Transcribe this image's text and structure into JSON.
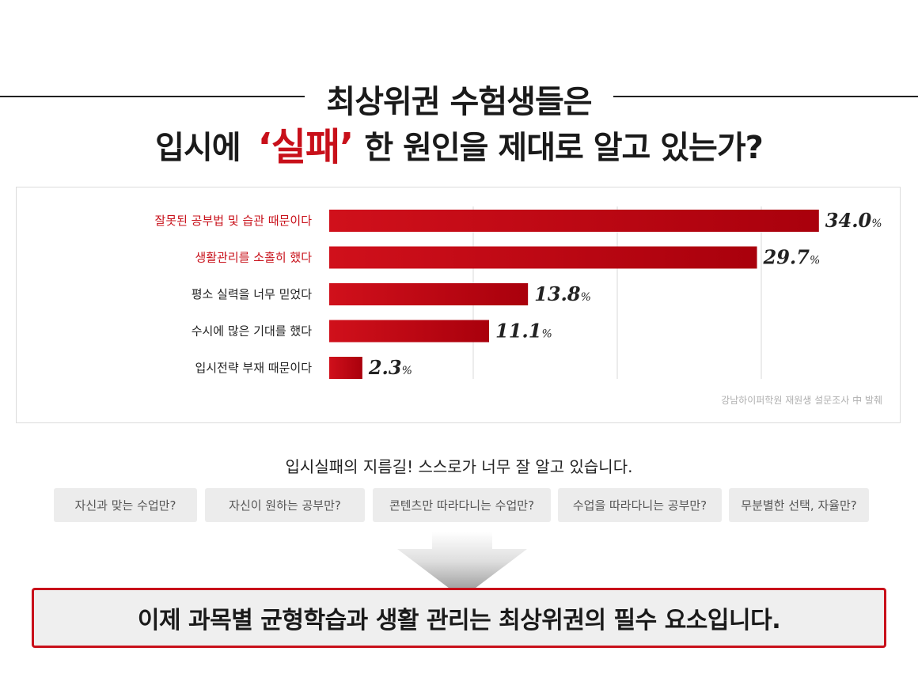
{
  "header": {
    "line1": "최상위권 수험생들은",
    "line2_before": "입시에",
    "line2_highlight": "‘실패’",
    "line2_after": "한 원인을 제대로 알고 있는가?"
  },
  "chart_data": {
    "type": "bar",
    "orientation": "horizontal",
    "categories": [
      "잘못된 공부법 및 습관 때문이다",
      "생활관리를 소홀히 했다",
      "평소 실력을 너무 믿었다",
      "수시에 많은 기대를 했다",
      "입시전략 부재 때문이다"
    ],
    "values": [
      34.0,
      29.7,
      13.8,
      11.1,
      2.3
    ],
    "value_labels": [
      "34.0",
      "29.7",
      "13.8",
      "11.1",
      "2.3"
    ],
    "unit": "%",
    "highlighted_categories": [
      0,
      1
    ],
    "xlim": [
      0,
      40
    ],
    "grid": true,
    "source": "강남하이퍼학원 재원생 설문조사 中 발췌",
    "colors": {
      "bar": "#c8101a",
      "highlight_label": "#c8101a",
      "label": "#222222",
      "grid": "#d9d9d9"
    }
  },
  "middle": {
    "subtitle": "입시실패의 지름길! 스스로가 너무 잘 알고 있습니다.",
    "pills": [
      "자신과 맞는 수업만?",
      "자신이 원하는 공부만?",
      "콘텐츠만 따라다니는 수업만?",
      "수업을 따라다니는 공부만?",
      "무분별한 선택, 자율만?"
    ]
  },
  "conclusion": {
    "text": "이제 과목별 균형학습과 생활 관리는 최상위권의 필수 요소입니다."
  }
}
